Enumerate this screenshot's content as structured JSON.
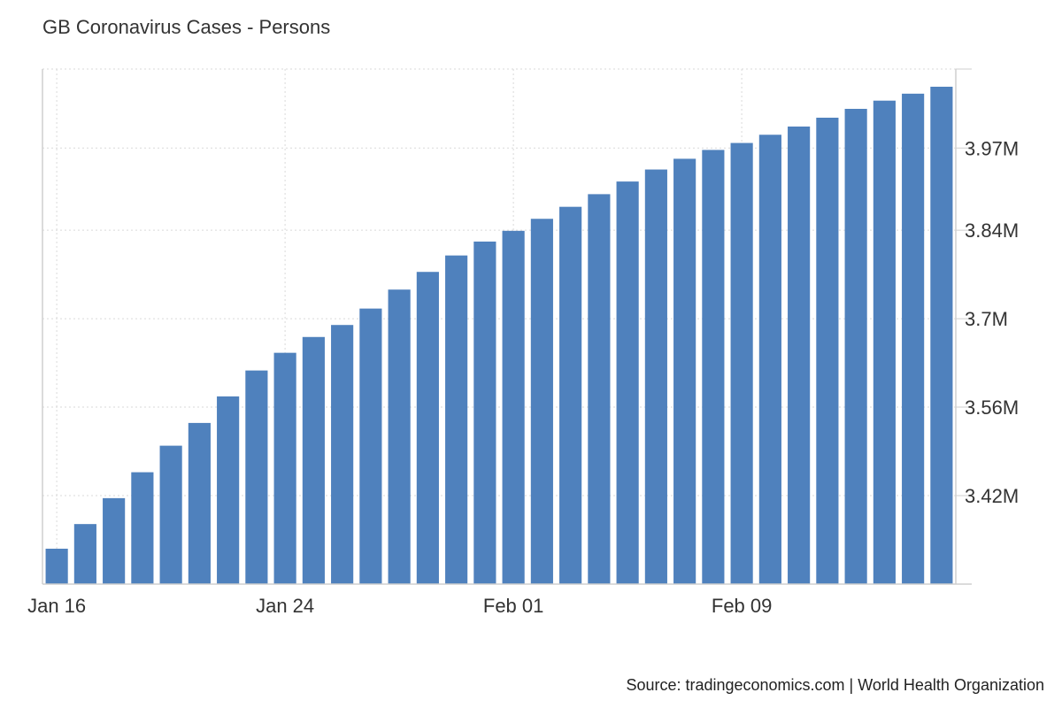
{
  "chart_data": {
    "type": "bar",
    "title": "GB Coronavirus Cases - Persons",
    "xlabel": "",
    "ylabel": "",
    "x_tick_labels": [
      "Jan 16",
      "Jan 24",
      "Feb 01",
      "Feb 09"
    ],
    "x_tick_dates": [
      "2021-01-16",
      "2021-01-24",
      "2021-02-01",
      "2021-02-09"
    ],
    "y_tick_labels": [
      "3.42M",
      "3.56M",
      "3.7M",
      "3.84M",
      "3.97M"
    ],
    "y_tick_values": [
      3420000,
      3560000,
      3700000,
      3840000,
      3970000
    ],
    "ylim": [
      3280000,
      4095000
    ],
    "categories": [
      "2021-01-16",
      "2021-01-17",
      "2021-01-18",
      "2021-01-19",
      "2021-01-20",
      "2021-01-21",
      "2021-01-22",
      "2021-01-23",
      "2021-01-24",
      "2021-01-25",
      "2021-01-26",
      "2021-01-27",
      "2021-01-28",
      "2021-01-29",
      "2021-01-30",
      "2021-01-31",
      "2021-02-01",
      "2021-02-02",
      "2021-02-03",
      "2021-02-04",
      "2021-02-05",
      "2021-02-06",
      "2021-02-07",
      "2021-02-08",
      "2021-02-09",
      "2021-02-10",
      "2021-02-11",
      "2021-02-12",
      "2021-02-13",
      "2021-02-14",
      "2021-02-15",
      "2021-02-16"
    ],
    "values": [
      3336000,
      3375000,
      3416000,
      3457000,
      3499000,
      3535000,
      3577000,
      3618000,
      3646000,
      3671000,
      3690000,
      3716000,
      3746000,
      3774000,
      3800000,
      3822000,
      3839000,
      3858000,
      3877000,
      3897000,
      3917000,
      3936000,
      3953000,
      3967000,
      3978000,
      3991000,
      4004000,
      4018000,
      4032000,
      4045000,
      4056000,
      4067000
    ],
    "bar_color": "#4f81bd",
    "grid": true,
    "source": "Source: tradingeconomics.com | World Health Organization"
  }
}
